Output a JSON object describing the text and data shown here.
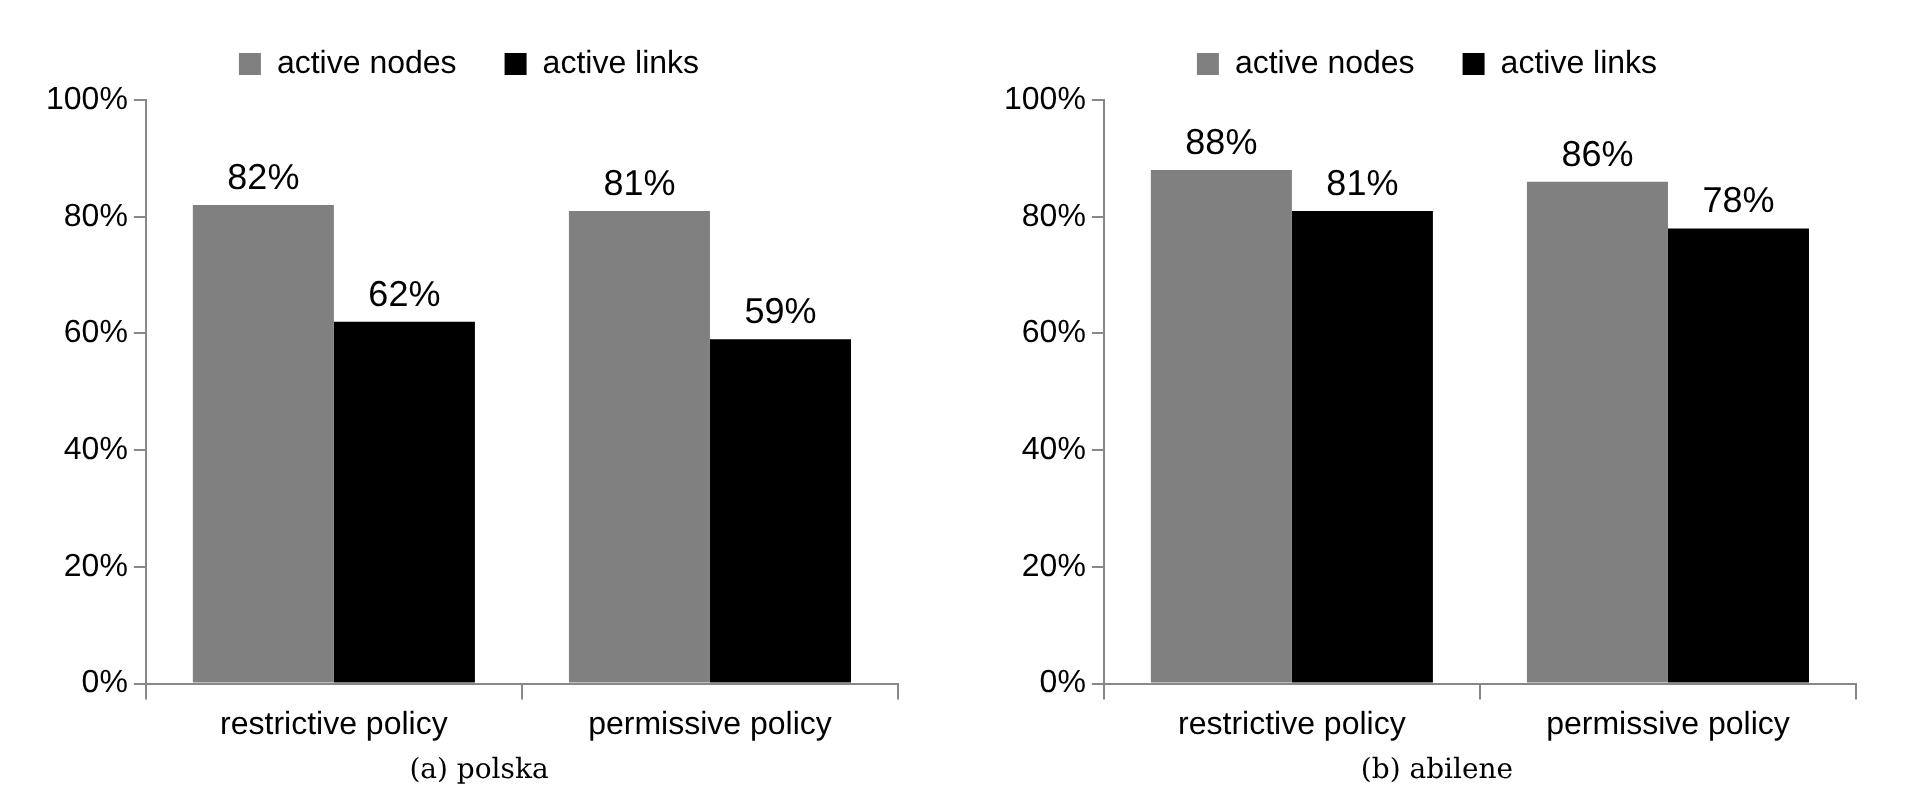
{
  "chart_data": [
    {
      "type": "bar",
      "title": "(a) polska",
      "categories": [
        "restrictive policy",
        "permissive policy"
      ],
      "series": [
        {
          "name": "active nodes",
          "color": "#808080",
          "values": [
            82,
            81
          ],
          "value_labels": [
            "82%",
            "81%"
          ]
        },
        {
          "name": "active links",
          "color": "#000000",
          "values": [
            62,
            59
          ],
          "value_labels": [
            "62%",
            "59%"
          ]
        }
      ],
      "ylim": [
        0,
        100
      ],
      "yticks": [
        {
          "value": 0,
          "label": "0%"
        },
        {
          "value": 20,
          "label": "20%"
        },
        {
          "value": 40,
          "label": "40%"
        },
        {
          "value": 60,
          "label": "60%"
        },
        {
          "value": 80,
          "label": "80%"
        },
        {
          "value": 100,
          "label": "100%"
        }
      ],
      "grid": false,
      "legend": "top"
    },
    {
      "type": "bar",
      "title": "(b) abilene",
      "categories": [
        "restrictive policy",
        "permissive policy"
      ],
      "series": [
        {
          "name": "active nodes",
          "color": "#808080",
          "values": [
            88,
            86
          ],
          "value_labels": [
            "88%",
            "86%"
          ]
        },
        {
          "name": "active links",
          "color": "#000000",
          "values": [
            81,
            78
          ],
          "value_labels": [
            "81%",
            "78%"
          ]
        }
      ],
      "ylim": [
        0,
        100
      ],
      "yticks": [
        {
          "value": 0,
          "label": "0%"
        },
        {
          "value": 20,
          "label": "20%"
        },
        {
          "value": 40,
          "label": "40%"
        },
        {
          "value": 60,
          "label": "60%"
        },
        {
          "value": 80,
          "label": "80%"
        },
        {
          "value": 100,
          "label": "100%"
        }
      ],
      "grid": false,
      "legend": "top"
    }
  ]
}
